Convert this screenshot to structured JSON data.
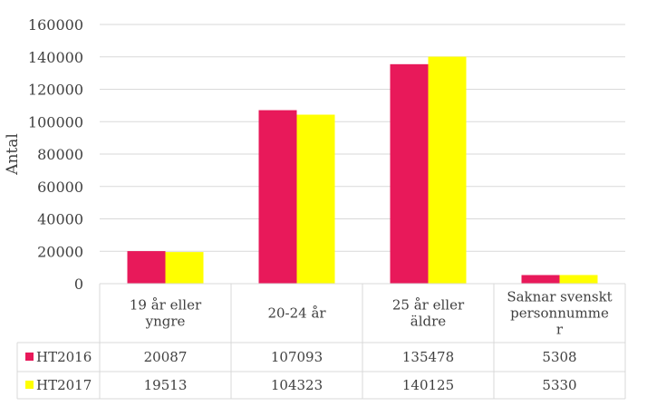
{
  "chart_data": {
    "type": "bar",
    "ylabel": "Antal",
    "ylim": [
      0,
      160000
    ],
    "yticks": [
      0,
      20000,
      40000,
      60000,
      80000,
      100000,
      120000,
      140000,
      160000
    ],
    "grid": true,
    "legend": "data-table-left",
    "categories": [
      [
        "19 år eller",
        "yngre"
      ],
      [
        "20-24 år"
      ],
      [
        "25 år eller",
        "äldre"
      ],
      [
        "Saknar svenskt",
        "personnumme",
        "r"
      ]
    ],
    "series": [
      {
        "name": "HT2016",
        "color": "#e8195a",
        "values": [
          20087,
          107093,
          135478,
          5308
        ]
      },
      {
        "name": "HT2017",
        "color": "#ffff00",
        "values": [
          19513,
          104323,
          140125,
          5330
        ]
      }
    ]
  }
}
